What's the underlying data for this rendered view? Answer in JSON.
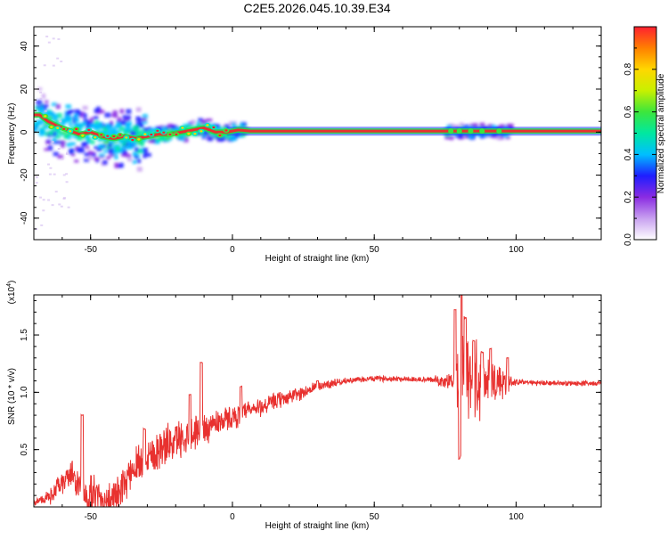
{
  "title": "C2E5.2026.045.10.39.E34",
  "colors": {
    "snr_line": "#e8312f",
    "ridge": "#e8312f",
    "ridge_halo": "#27d64a",
    "axis": "#000000"
  },
  "chart_data": [
    {
      "type": "heatmap",
      "xlabel": "Height of straight line (km)",
      "ylabel": "Frequency (Hz)",
      "xlim": [
        -70,
        130
      ],
      "ylim": [
        -50,
        49
      ],
      "xticks": [
        -50,
        0,
        50,
        100
      ],
      "yticks": [
        -40,
        -20,
        0,
        20,
        40
      ],
      "colorbar": {
        "label": "Normalized spectral amplitude",
        "ticks": [
          "0.0",
          "0.2",
          "0.4",
          "0.6",
          "0.8"
        ],
        "range": [
          0,
          1
        ],
        "colormap": [
          "#ffffff",
          "#c8a0f0",
          "#8a2be2",
          "#1e1eff",
          "#00bfff",
          "#00e8a0",
          "#3ce63c",
          "#c8f000",
          "#ffd700",
          "#ff8000",
          "#ff2030"
        ]
      },
      "ridge": {
        "x": [
          -68,
          -65,
          -62,
          -58,
          -54,
          -50,
          -46,
          -42,
          -38,
          -34,
          -30,
          -26,
          -22,
          -18,
          -14,
          -10,
          -6,
          -2,
          2,
          6,
          10,
          20,
          40,
          60,
          80,
          100,
          120,
          130
        ],
        "y": [
          8,
          5,
          3,
          1,
          -1,
          0,
          -2,
          -3,
          -2,
          -3,
          -2,
          -1,
          -1,
          0,
          1,
          2,
          0,
          0,
          1,
          0.5,
          0.5,
          0.5,
          0.5,
          0.5,
          0.5,
          0.5,
          0.5,
          0.5
        ]
      },
      "scatter_regions": [
        {
          "x": [
            -70,
            -30
          ],
          "y": [
            -12,
            18
          ],
          "amplitude": 0.4
        },
        {
          "x": [
            -30,
            5
          ],
          "y": [
            -3,
            6
          ],
          "amplitude": 0.5
        },
        {
          "x": [
            75,
            98
          ],
          "y": [
            -3,
            4
          ],
          "amplitude": 0.35
        }
      ]
    },
    {
      "type": "line",
      "xlabel": "Height of straight line (km)",
      "ylabel": "SNR (10 * v/v)",
      "multiplier_label": "(x10",
      "multiplier_exp": "4",
      "xlim": [
        -70,
        130
      ],
      "ylim": [
        0,
        1.85
      ],
      "xticks": [
        -50,
        0,
        50,
        100
      ],
      "yticks": [
        "0.5",
        "1.0",
        "1.5"
      ],
      "series": [
        {
          "envelope_x": [
            -70,
            -65,
            -60,
            -57,
            -52,
            -48,
            -44,
            -40,
            -35,
            -30,
            -25,
            -20,
            -15,
            -10,
            -5,
            0,
            5,
            10,
            15,
            20,
            25,
            30,
            35,
            40,
            45,
            50,
            55,
            60,
            65,
            70,
            75,
            78,
            80,
            82,
            85,
            88,
            92,
            96,
            100,
            110,
            120,
            130
          ],
          "envelope_y": [
            0.04,
            0.08,
            0.2,
            0.3,
            0.1,
            0.08,
            0.06,
            0.1,
            0.35,
            0.45,
            0.52,
            0.58,
            0.64,
            0.68,
            0.75,
            0.78,
            0.83,
            0.87,
            0.92,
            0.96,
            1.0,
            1.05,
            1.08,
            1.1,
            1.11,
            1.12,
            1.12,
            1.12,
            1.11,
            1.11,
            1.1,
            1.1,
            1.1,
            1.08,
            1.1,
            1.1,
            1.1,
            1.09,
            1.09,
            1.08,
            1.08,
            1.08
          ],
          "noise_x": [
            -70,
            -60,
            -50,
            -40,
            -30,
            -20,
            -10,
            0,
            10,
            20,
            30,
            40,
            70,
            78,
            80,
            82,
            85,
            88,
            92,
            96,
            98,
            100,
            130
          ],
          "noise_amp": [
            0.03,
            0.12,
            0.22,
            0.18,
            0.22,
            0.2,
            0.16,
            0.12,
            0.1,
            0.08,
            0.06,
            0.03,
            0.03,
            0.1,
            0.35,
            0.5,
            0.45,
            0.35,
            0.25,
            0.2,
            0.08,
            0.03,
            0.025
          ],
          "spikes": [
            {
              "x": -53,
              "y": 0.8
            },
            {
              "x": -31,
              "y": 0.68
            },
            {
              "x": -15,
              "y": 0.98
            },
            {
              "x": -11,
              "y": 1.26
            },
            {
              "x": 3,
              "y": 1.05
            },
            {
              "x": 30,
              "y": 1.1
            },
            {
              "x": 80.6,
              "y": 1.85
            },
            {
              "x": 80.1,
              "y": 0.42
            },
            {
              "x": 78.5,
              "y": 1.72
            },
            {
              "x": 82,
              "y": 1.65
            },
            {
              "x": 85,
              "y": 1.45
            },
            {
              "x": 88,
              "y": 1.35
            },
            {
              "x": 91,
              "y": 1.38
            },
            {
              "x": 97,
              "y": 1.3
            }
          ]
        }
      ]
    }
  ]
}
